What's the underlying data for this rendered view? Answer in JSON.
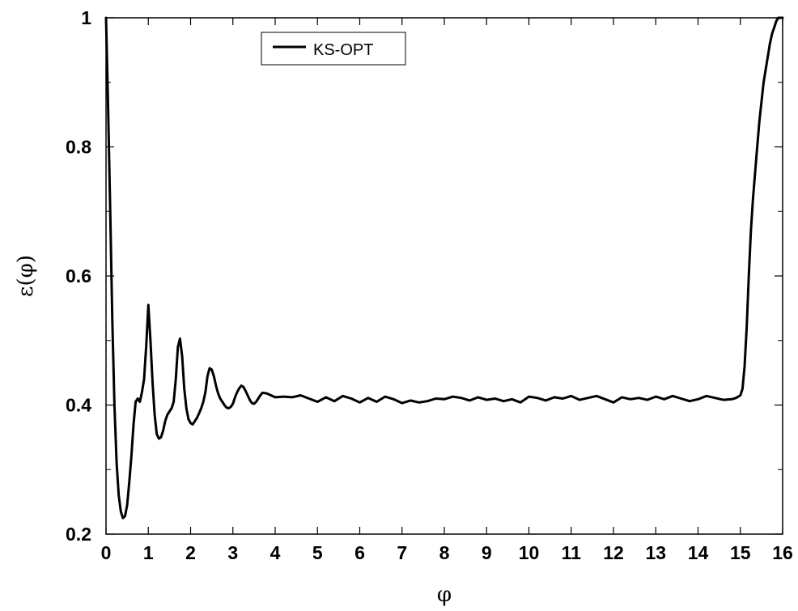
{
  "chart_data": {
    "type": "line",
    "xlabel": "φ",
    "ylabel": "ε(φ)",
    "xlim": [
      0,
      16
    ],
    "ylim": [
      0.2,
      1.0
    ],
    "grid": false,
    "legend_position": "top-left",
    "x_ticks": [
      0,
      1,
      2,
      3,
      4,
      5,
      6,
      7,
      8,
      9,
      10,
      11,
      12,
      13,
      14,
      15,
      16
    ],
    "x_tick_labels": [
      "0",
      "1",
      "2",
      "3",
      "4",
      "5",
      "6",
      "7",
      "8",
      "9",
      "10",
      "11",
      "12",
      "13",
      "14",
      "15",
      "16"
    ],
    "y_ticks": [
      0.2,
      0.4,
      0.6,
      0.8,
      1.0
    ],
    "y_tick_labels": [
      "0.2",
      "0.4",
      "0.6",
      "0.8",
      "1"
    ],
    "series": [
      {
        "name": "KS-OPT",
        "color": "#000000",
        "x": [
          0,
          0.05,
          0.1,
          0.15,
          0.2,
          0.25,
          0.3,
          0.35,
          0.4,
          0.45,
          0.5,
          0.55,
          0.6,
          0.65,
          0.7,
          0.75,
          0.8,
          0.85,
          0.9,
          0.95,
          1.0,
          1.05,
          1.1,
          1.15,
          1.2,
          1.25,
          1.3,
          1.35,
          1.4,
          1.45,
          1.5,
          1.55,
          1.6,
          1.65,
          1.7,
          1.75,
          1.8,
          1.85,
          1.9,
          1.95,
          2.0,
          2.05,
          2.1,
          2.15,
          2.2,
          2.25,
          2.3,
          2.35,
          2.4,
          2.45,
          2.5,
          2.55,
          2.6,
          2.65,
          2.7,
          2.75,
          2.8,
          2.85,
          2.9,
          2.95,
          3.0,
          3.05,
          3.1,
          3.15,
          3.2,
          3.25,
          3.3,
          3.35,
          3.4,
          3.45,
          3.5,
          3.55,
          3.6,
          3.65,
          3.7,
          3.8,
          3.9,
          4.0,
          4.2,
          4.4,
          4.6,
          4.8,
          5.0,
          5.2,
          5.4,
          5.6,
          5.8,
          6.0,
          6.2,
          6.4,
          6.6,
          6.8,
          7.0,
          7.2,
          7.4,
          7.6,
          7.8,
          8.0,
          8.2,
          8.4,
          8.6,
          8.8,
          9.0,
          9.2,
          9.4,
          9.6,
          9.8,
          10.0,
          10.2,
          10.4,
          10.6,
          10.8,
          11.0,
          11.2,
          11.4,
          11.6,
          11.8,
          12.0,
          12.2,
          12.4,
          12.6,
          12.8,
          13.0,
          13.2,
          13.4,
          13.6,
          13.8,
          14.0,
          14.2,
          14.4,
          14.6,
          14.8,
          14.9,
          15.0,
          15.05,
          15.1,
          15.15,
          15.2,
          15.25,
          15.3,
          15.35,
          15.4,
          15.45,
          15.5,
          15.55,
          15.6,
          15.65,
          15.7,
          15.75,
          15.8,
          15.85,
          15.9,
          15.95,
          16.0
        ],
        "y": [
          1.0,
          0.86,
          0.7,
          0.53,
          0.4,
          0.31,
          0.26,
          0.235,
          0.225,
          0.228,
          0.245,
          0.28,
          0.32,
          0.37,
          0.405,
          0.41,
          0.405,
          0.42,
          0.44,
          0.49,
          0.555,
          0.5,
          0.435,
          0.385,
          0.355,
          0.348,
          0.35,
          0.36,
          0.375,
          0.385,
          0.39,
          0.395,
          0.405,
          0.44,
          0.49,
          0.503,
          0.475,
          0.425,
          0.395,
          0.378,
          0.372,
          0.37,
          0.375,
          0.38,
          0.387,
          0.395,
          0.405,
          0.42,
          0.445,
          0.457,
          0.455,
          0.445,
          0.43,
          0.418,
          0.41,
          0.405,
          0.4,
          0.396,
          0.395,
          0.397,
          0.402,
          0.412,
          0.42,
          0.426,
          0.43,
          0.428,
          0.422,
          0.415,
          0.408,
          0.403,
          0.402,
          0.405,
          0.41,
          0.415,
          0.419,
          0.418,
          0.415,
          0.412,
          0.413,
          0.412,
          0.415,
          0.41,
          0.405,
          0.412,
          0.406,
          0.414,
          0.41,
          0.404,
          0.411,
          0.405,
          0.413,
          0.409,
          0.403,
          0.407,
          0.404,
          0.406,
          0.41,
          0.409,
          0.413,
          0.411,
          0.407,
          0.412,
          0.408,
          0.41,
          0.406,
          0.409,
          0.404,
          0.413,
          0.411,
          0.407,
          0.412,
          0.41,
          0.414,
          0.408,
          0.411,
          0.414,
          0.409,
          0.404,
          0.412,
          0.409,
          0.411,
          0.408,
          0.413,
          0.409,
          0.414,
          0.41,
          0.406,
          0.409,
          0.414,
          0.411,
          0.408,
          0.409,
          0.411,
          0.415,
          0.425,
          0.46,
          0.52,
          0.6,
          0.67,
          0.72,
          0.76,
          0.8,
          0.84,
          0.87,
          0.9,
          0.92,
          0.94,
          0.96,
          0.975,
          0.985,
          0.995,
          1.0,
          1.0,
          1.0
        ]
      }
    ]
  }
}
